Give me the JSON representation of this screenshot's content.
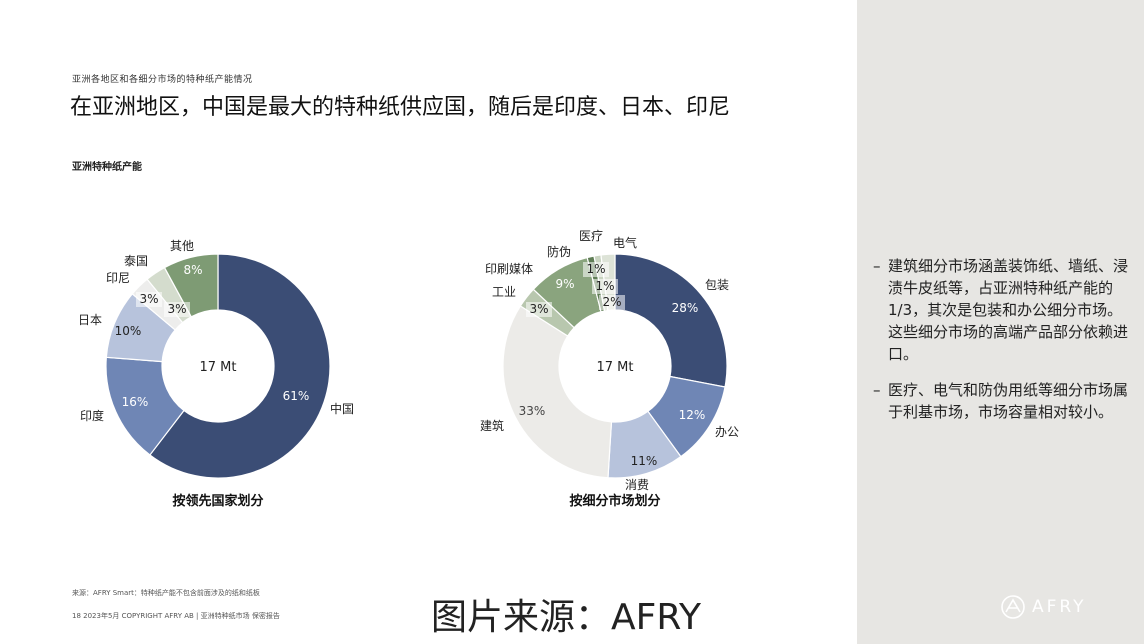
{
  "header": {
    "kicker": "亚洲各地区和各细分市场的特种纸产能情况",
    "headline": "在亚洲地区，中国是最大的特种纸供应国，随后是印度、日本、印尼",
    "chart_label": "亚洲特种纸产能"
  },
  "chart_data": [
    {
      "type": "pie",
      "center_label": "17 Mt",
      "caption": "按领先国家划分",
      "slices": [
        {
          "label": "中国",
          "value": 61,
          "display": "61%",
          "color": "#3b4d75",
          "text_color": "#ffffff"
        },
        {
          "label": "印度",
          "value": 16,
          "display": "16%",
          "color": "#6f86b5",
          "text_color": "#ffffff"
        },
        {
          "label": "日本",
          "value": 10,
          "display": "10%",
          "color": "#b7c3dc",
          "text_color": "#222222"
        },
        {
          "label": "印尼",
          "value": 3,
          "display": "3%",
          "color": "#ededec",
          "text_color": "#222222"
        },
        {
          "label": "泰国",
          "value": 3,
          "display": "3%",
          "color": "#d4dccd",
          "text_color": "#222222"
        },
        {
          "label": "其他",
          "value": 8,
          "display": "8%",
          "color": "#7e9b74",
          "text_color": "#ffffff"
        }
      ]
    },
    {
      "type": "pie",
      "center_label": "17 Mt",
      "caption": "按细分市场划分",
      "slices": [
        {
          "label": "包装",
          "value": 28,
          "display": "28%",
          "color": "#3b4d75",
          "text_color": "#ffffff"
        },
        {
          "label": "办公",
          "value": 12,
          "display": "12%",
          "color": "#6f86b5",
          "text_color": "#ffffff"
        },
        {
          "label": "消费",
          "value": 11,
          "display": "11%",
          "color": "#b7c3dc",
          "text_color": "#222222"
        },
        {
          "label": "建筑",
          "value": 33,
          "display": "33%",
          "color": "#ecebe8",
          "text_color": "#444444"
        },
        {
          "label": "工业",
          "value": 3,
          "display": "3%",
          "color": "#b8c7ae",
          "text_color": "#222222"
        },
        {
          "label": "印刷媒体",
          "value": 9,
          "display": "9%",
          "color": "#8aa47e",
          "text_color": "#ffffff"
        },
        {
          "label": "防伪",
          "value": 1,
          "display": "1%",
          "color": "#5f7d55",
          "text_color": "#222222"
        },
        {
          "label": "医疗",
          "value": 1,
          "display": "1%",
          "color": "#c9d4c1",
          "text_color": "#222222"
        },
        {
          "label": "电气",
          "value": 2,
          "display": "2%",
          "color": "#dde3d7",
          "text_color": "#222222"
        }
      ]
    }
  ],
  "sidebar": {
    "bullets": [
      "建筑细分市场涵盖装饰纸、墙纸、浸渍牛皮纸等，占亚洲特种纸产能的 1/3，其次是包装和办公细分市场。这些细分市场的高端产品部分依赖进口。",
      "医疗、电气和防伪用纸等细分市场属于利基市场，市场容量相对较小。"
    ],
    "dash": "–"
  },
  "footer": {
    "source_note": "来源：AFRY Smart：特种纸产能不包含前面涉及的纸和纸板",
    "page_line": "18   2023年5月   COPYRIGHT AFRY AB | 亚洲特种纸市场   保密报告",
    "image_source": "图片来源：AFRY",
    "logo_text": "AFRY"
  }
}
